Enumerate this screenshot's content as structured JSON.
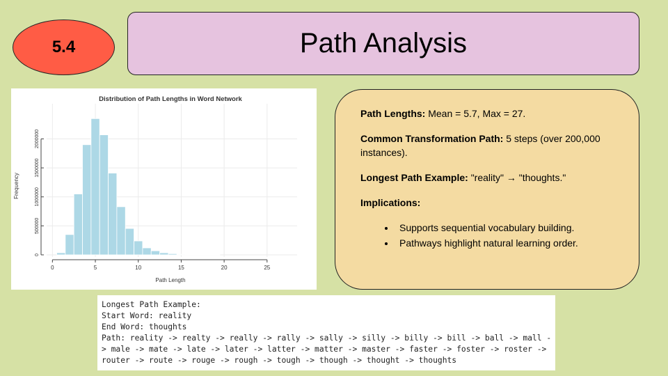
{
  "badge": "5.4",
  "title": "Path Analysis",
  "chart_data": {
    "type": "histogram",
    "title": "Distribution of Path Lengths in Word Network",
    "x_label": "Path Length",
    "y_label": "Frequency",
    "bins": [
      0.5,
      1.5,
      2.5,
      3.5,
      4.5,
      5.5,
      6.5,
      7.5,
      8.5,
      9.5,
      10.5,
      11.5,
      12.5,
      13.5,
      14.5,
      15.5,
      16.5,
      17.5,
      18.5,
      19.5
    ],
    "values": [
      36000,
      350000,
      1050000,
      1900000,
      2350000,
      2070000,
      1410000,
      830000,
      455000,
      240000,
      120000,
      70000,
      36000,
      20000,
      10000,
      6000,
      4000,
      2000,
      1000
    ],
    "color": "#add8e6",
    "xlim": [
      -1,
      28.5
    ],
    "xticks": [
      0,
      5,
      10,
      15,
      20,
      25
    ],
    "ylim": [
      0,
      2450000
    ],
    "yticks": [
      0,
      500000,
      1000000,
      1500000,
      2000000
    ],
    "grid": true
  },
  "info": {
    "items": [
      {
        "label": "Path Lengths:",
        "text": "Mean = 5.7, Max = 27."
      },
      {
        "label": "Common Transformation Path:",
        "text": "5 steps (over 200,000 instances)."
      },
      {
        "label": "Longest Path Example:",
        "text": "\"reality\" → \"thoughts.\""
      },
      {
        "label": "Implications:",
        "text": ""
      }
    ],
    "bullets": [
      "Supports sequential vocabulary building.",
      "Pathways highlight natural learning order."
    ]
  },
  "code": {
    "lines": [
      "Longest Path Example:",
      "Start Word: reality",
      "End Word: thoughts",
      "Path: reality -> realty -> really -> rally -> sally -> silly -> billy -> bill -> ball -> mall -",
      "> male -> mate -> late -> later -> latter -> matter -> master -> faster -> foster -> roster ->",
      "router -> route -> rouge -> rough -> tough -> though -> thought -> thoughts"
    ]
  }
}
